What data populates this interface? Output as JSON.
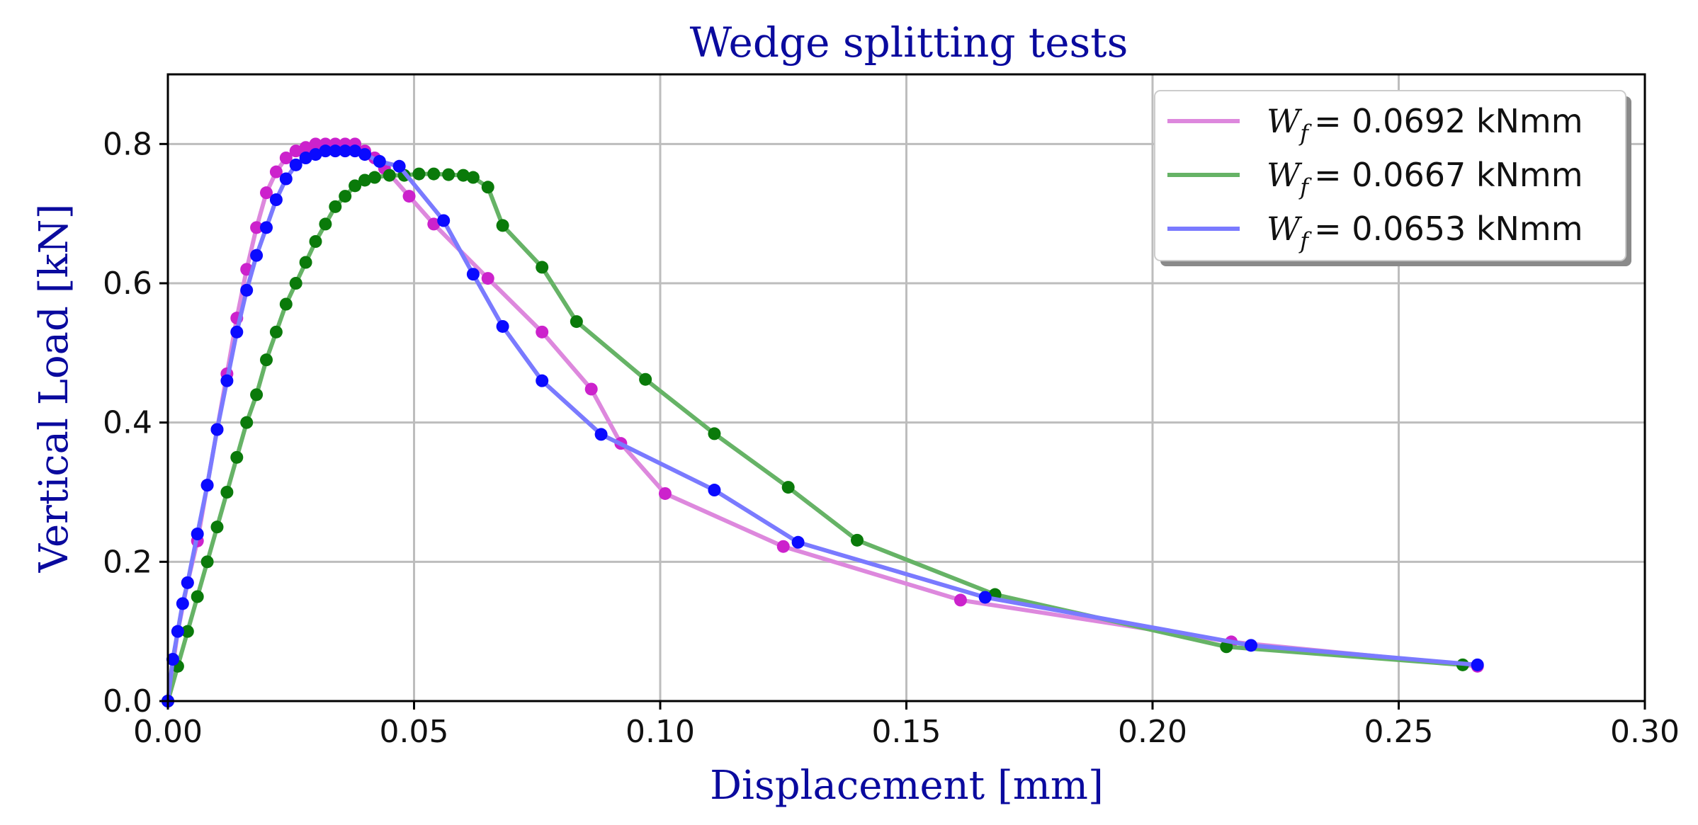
{
  "chart_data": {
    "type": "line",
    "title": "Wedge splitting tests",
    "xlabel": "Displacement [mm]",
    "ylabel": "Vertical Load [kN]",
    "xlim": [
      0.0,
      0.3
    ],
    "ylim": [
      0.0,
      0.9
    ],
    "grid": true,
    "legend_position": "top-right",
    "xticks": [
      0.0,
      0.05,
      0.1,
      0.15,
      0.2,
      0.25,
      0.3
    ],
    "xtick_labels": [
      "0.00",
      "0.05",
      "0.10",
      "0.15",
      "0.20",
      "0.25",
      "0.30"
    ],
    "yticks": [
      0.0,
      0.2,
      0.4,
      0.6,
      0.8
    ],
    "ytick_labels": [
      "0.0",
      "0.2",
      "0.4",
      "0.6",
      "0.8"
    ],
    "series": [
      {
        "name": "W_f = 0.0692 kNmm",
        "legend_symbol": "W",
        "legend_subscript": "f",
        "legend_value": "= 0.0692 kNmm",
        "line_color": "#dd88dd",
        "marker_color": "#cc22cc",
        "x": [
          0.0,
          0.002,
          0.004,
          0.006,
          0.008,
          0.01,
          0.012,
          0.014,
          0.016,
          0.018,
          0.02,
          0.022,
          0.024,
          0.026,
          0.028,
          0.03,
          0.032,
          0.034,
          0.036,
          0.038,
          0.04,
          0.042,
          0.044,
          0.049,
          0.054,
          0.065,
          0.076,
          0.086,
          0.092,
          0.101,
          0.125,
          0.161,
          0.216,
          0.266
        ],
        "y": [
          0.0,
          0.1,
          0.17,
          0.23,
          0.31,
          0.39,
          0.47,
          0.55,
          0.62,
          0.68,
          0.73,
          0.76,
          0.78,
          0.79,
          0.795,
          0.8,
          0.8,
          0.8,
          0.8,
          0.8,
          0.79,
          0.78,
          0.765,
          0.725,
          0.685,
          0.607,
          0.53,
          0.448,
          0.37,
          0.298,
          0.222,
          0.145,
          0.085,
          0.05
        ]
      },
      {
        "name": "W_f = 0.0667 kNmm",
        "legend_symbol": "W",
        "legend_subscript": "f",
        "legend_value": "= 0.0667 kNmm",
        "line_color": "#66b366",
        "marker_color": "#0a7a0a",
        "x": [
          0.0,
          0.002,
          0.004,
          0.006,
          0.008,
          0.01,
          0.012,
          0.014,
          0.016,
          0.018,
          0.02,
          0.022,
          0.024,
          0.026,
          0.028,
          0.03,
          0.032,
          0.034,
          0.036,
          0.038,
          0.04,
          0.042,
          0.045,
          0.048,
          0.051,
          0.054,
          0.057,
          0.06,
          0.062,
          0.065,
          0.068,
          0.076,
          0.083,
          0.097,
          0.111,
          0.126,
          0.14,
          0.168,
          0.215,
          0.263
        ],
        "y": [
          0.0,
          0.05,
          0.1,
          0.15,
          0.2,
          0.25,
          0.3,
          0.35,
          0.4,
          0.44,
          0.49,
          0.53,
          0.57,
          0.6,
          0.63,
          0.66,
          0.685,
          0.71,
          0.725,
          0.74,
          0.748,
          0.752,
          0.755,
          0.755,
          0.757,
          0.757,
          0.756,
          0.755,
          0.752,
          0.738,
          0.683,
          0.623,
          0.545,
          0.462,
          0.384,
          0.307,
          0.231,
          0.153,
          0.078,
          0.052
        ]
      },
      {
        "name": "W_f = 0.0653 kNmm",
        "legend_symbol": "W",
        "legend_subscript": "f",
        "legend_value": "= 0.0653 kNmm",
        "line_color": "#7a7aff",
        "marker_color": "#0a0aff",
        "x": [
          0.0,
          0.001,
          0.002,
          0.003,
          0.004,
          0.006,
          0.008,
          0.01,
          0.012,
          0.014,
          0.016,
          0.018,
          0.02,
          0.022,
          0.024,
          0.026,
          0.028,
          0.03,
          0.032,
          0.034,
          0.036,
          0.038,
          0.04,
          0.043,
          0.047,
          0.056,
          0.062,
          0.068,
          0.076,
          0.088,
          0.111,
          0.128,
          0.166,
          0.22,
          0.266
        ],
        "y": [
          0.0,
          0.06,
          0.1,
          0.14,
          0.17,
          0.24,
          0.31,
          0.39,
          0.46,
          0.53,
          0.59,
          0.64,
          0.68,
          0.72,
          0.75,
          0.77,
          0.78,
          0.785,
          0.79,
          0.79,
          0.79,
          0.79,
          0.785,
          0.775,
          0.768,
          0.69,
          0.613,
          0.538,
          0.46,
          0.383,
          0.303,
          0.228,
          0.149,
          0.08,
          0.052
        ]
      }
    ]
  }
}
